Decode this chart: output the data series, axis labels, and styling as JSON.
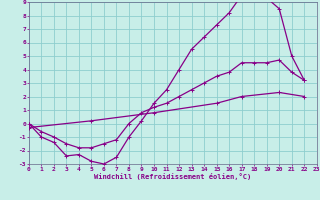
{
  "xlabel": "Windchill (Refroidissement éolien,°C)",
  "bg_color": "#c8eee8",
  "grid_color": "#8ecece",
  "line_color": "#880088",
  "xlim": [
    0,
    23
  ],
  "ylim": [
    -3,
    9
  ],
  "xticks": [
    0,
    1,
    2,
    3,
    4,
    5,
    6,
    7,
    8,
    9,
    10,
    11,
    12,
    13,
    14,
    15,
    16,
    17,
    18,
    19,
    20,
    21,
    22,
    23
  ],
  "yticks": [
    -3,
    -2,
    -1,
    0,
    1,
    2,
    3,
    4,
    5,
    6,
    7,
    8,
    9
  ],
  "curve1_x": [
    0,
    1,
    2,
    3,
    4,
    5,
    6,
    7,
    8,
    9,
    10,
    11,
    12,
    13,
    14,
    15,
    16,
    17,
    18,
    19,
    20,
    21,
    22
  ],
  "curve1_y": [
    0,
    -1,
    -1.4,
    -2.4,
    -2.3,
    -2.8,
    -3.0,
    -2.5,
    -1.0,
    0.2,
    1.5,
    2.5,
    4.0,
    5.5,
    6.4,
    7.3,
    8.2,
    9.5,
    9.5,
    9.3,
    8.5,
    5.0,
    3.2
  ],
  "curve2_x": [
    0,
    1,
    2,
    3,
    4,
    5,
    6,
    7,
    8,
    9,
    10,
    11,
    12,
    13,
    14,
    15,
    16,
    17,
    18,
    19,
    20,
    21,
    22
  ],
  "curve2_y": [
    0,
    -0.6,
    -1.0,
    -1.5,
    -1.8,
    -1.8,
    -1.5,
    -1.2,
    0.0,
    0.8,
    1.2,
    1.5,
    2.0,
    2.5,
    3.0,
    3.5,
    3.8,
    4.5,
    4.5,
    4.5,
    4.7,
    3.8,
    3.2
  ],
  "curve3_x": [
    0,
    5,
    10,
    15,
    17,
    20,
    22
  ],
  "curve3_y": [
    -0.3,
    0.2,
    0.8,
    1.5,
    2.0,
    2.3,
    2.0
  ]
}
